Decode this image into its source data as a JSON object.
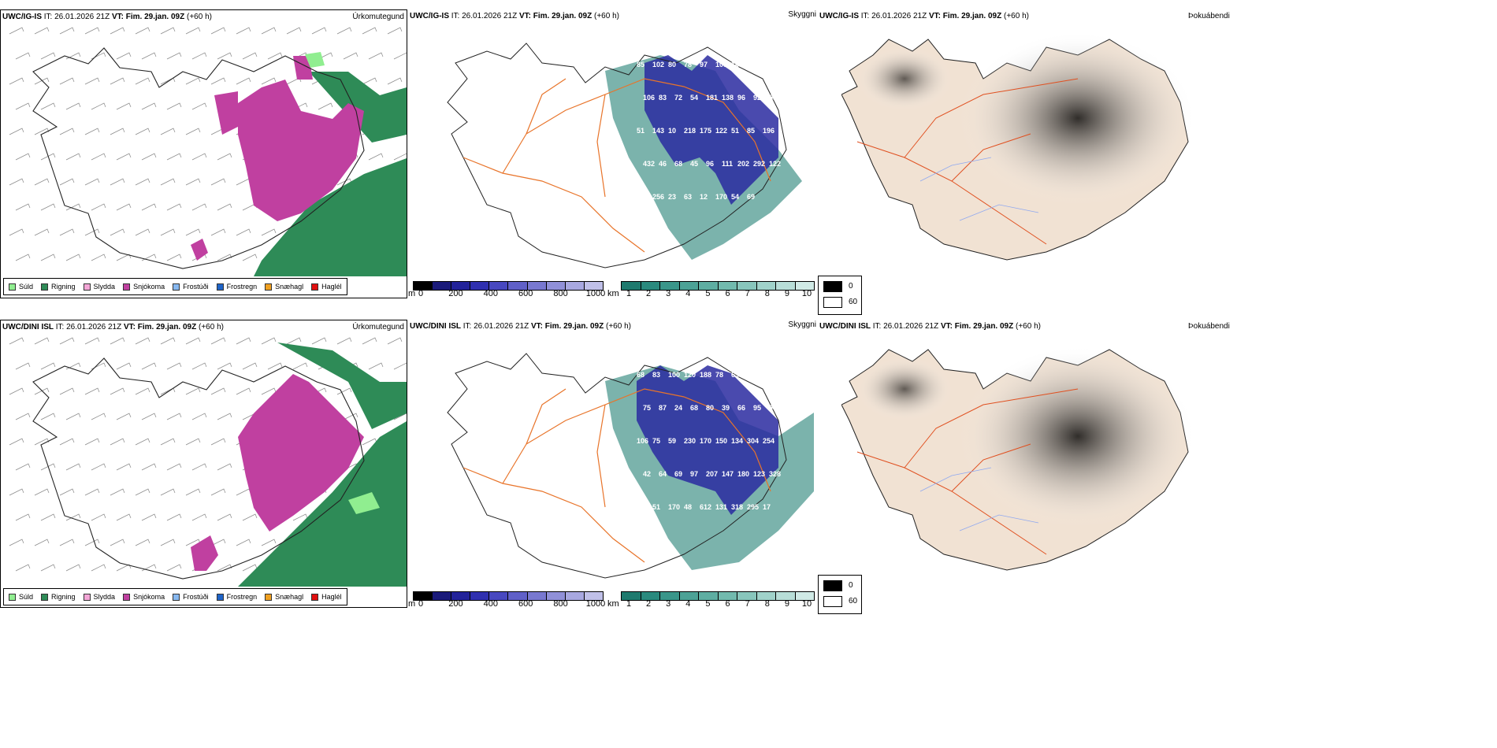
{
  "rows": [
    {
      "precip_title": {
        "model": "UWC/IG-IS",
        "it": "IT: 26.01.2026 21Z",
        "vt_label": "VT:",
        "vt_value": "Fim. 29.jan. 09Z",
        "lead": "(+60 h)"
      },
      "cloud_title": {
        "model": "UWC/IG-IS",
        "it": "IT: 26.01.2026 21Z",
        "vt_label": "VT:",
        "vt_value": "Fim. 29.jan. 09Z",
        "lead": "(+60 h)"
      },
      "cover_title": {
        "model": "UWC/IG-IS",
        "it": "IT: 26.01.2026 21Z",
        "vt_label": "VT:",
        "vt_value": "Fim. 29.jan. 09Z",
        "lead": "(+60 h)"
      },
      "cloud_labels": [
        "85",
        "102",
        "80",
        "78",
        "97",
        "109",
        "148",
        "10",
        "111",
        "106",
        "83",
        "72",
        "54",
        "181",
        "138",
        "96",
        "92",
        "51",
        "51",
        "143",
        "10",
        "218",
        "175",
        "122",
        "51",
        "85",
        "196",
        "432",
        "46",
        "68",
        "45",
        "96",
        "111",
        "202",
        "292",
        "122",
        "44",
        "256",
        "23",
        "63",
        "12",
        "170",
        "54",
        "69"
      ]
    },
    {
      "precip_title": {
        "model": "UWC/DINI ISL",
        "it": "IT: 26.01.2026 21Z",
        "vt_label": "VT:",
        "vt_value": "Fim. 29.jan. 09Z",
        "lead": "(+60 h)"
      },
      "cloud_title": {
        "model": "UWC/DINI ISL",
        "it": "IT: 26.01.2026 21Z",
        "vt_label": "VT:",
        "vt_value": "Fim. 29.jan. 09Z",
        "lead": "(+60 h)"
      },
      "cover_title": {
        "model": "UWC/DINI ISL",
        "it": "IT: 26.01.2026 21Z",
        "vt_label": "VT:",
        "vt_value": "Fim. 29.jan. 09Z",
        "lead": "(+60 h)"
      },
      "cloud_labels": [
        "68",
        "83",
        "100",
        "120",
        "188",
        "78",
        "63",
        "74",
        "202",
        "75",
        "87",
        "24",
        "68",
        "80",
        "39",
        "66",
        "95",
        "98",
        "106",
        "75",
        "59",
        "230",
        "170",
        "150",
        "134",
        "304",
        "254",
        "42",
        "64",
        "69",
        "97",
        "207",
        "147",
        "180",
        "123",
        "328",
        "158",
        "51",
        "170",
        "48",
        "612",
        "131",
        "318",
        "295",
        "17"
      ]
    }
  ],
  "fields": {
    "precip": "Úrkomutegund",
    "cloud": "Skyggni",
    "cover": "Þokuábendi"
  },
  "precip_legend": [
    {
      "label": "Súld",
      "color": "#90ee90"
    },
    {
      "label": "Rigning",
      "color": "#2e8b57"
    },
    {
      "label": "Slydda",
      "color": "#f4a6d7"
    },
    {
      "label": "Snjókoma",
      "color": "#c040a0"
    },
    {
      "label": "Frostúði",
      "color": "#87b8f0"
    },
    {
      "label": "Frostregn",
      "color": "#1e64c8"
    },
    {
      "label": "Snæhagl",
      "color": "#f0a020"
    },
    {
      "label": "Haglél",
      "color": "#e01010"
    }
  ],
  "base_bar": {
    "unit": "m",
    "ticks": [
      "0",
      "200",
      "400",
      "600",
      "800",
      "1000"
    ],
    "colors": [
      "#000000",
      "#1a1a7a",
      "#22229a",
      "#3030b0",
      "#4848c0",
      "#6060c8",
      "#7878d0",
      "#9090d8",
      "#a8a8e0",
      "#c0c0e8"
    ]
  },
  "vis_bar": {
    "unit": "km",
    "ticks": [
      "1",
      "2",
      "3",
      "4",
      "5",
      "6",
      "7",
      "8",
      "9",
      "10"
    ],
    "colors": [
      "#1e7a6e",
      "#2a8a7e",
      "#3a968a",
      "#4ca296",
      "#5eaea2",
      "#72baae",
      "#88c6bc",
      "#a0d2ca",
      "#b8ded8",
      "#d0eae6"
    ]
  },
  "cover_legend": [
    {
      "label": "0",
      "color": "#000000"
    },
    {
      "label": "60",
      "color": "#ffffff"
    }
  ],
  "colors": {
    "land": "#f1e2d3",
    "road": "#e8742a",
    "water": "#8fa8f0",
    "snow": "#c040a0",
    "rain": "#2e8b57",
    "drizzle": "#90ee90",
    "cloud": "#2a2aa0",
    "vis": "#4f9a90"
  }
}
